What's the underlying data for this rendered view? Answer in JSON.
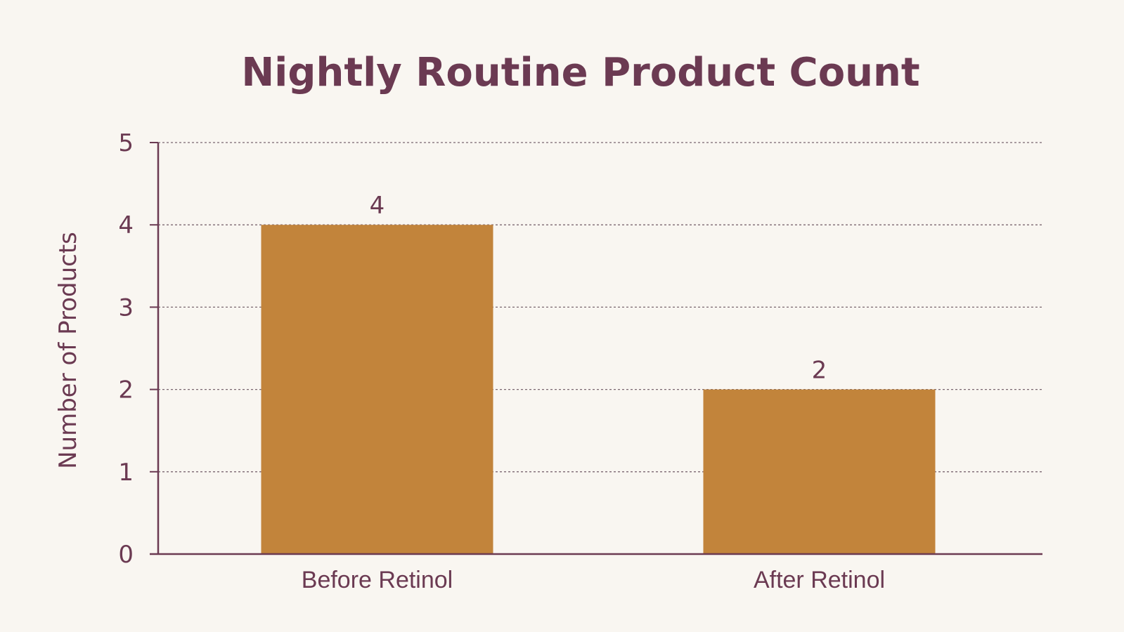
{
  "chart_data": {
    "type": "bar",
    "title": "Nightly Routine Product Count",
    "xlabel": "",
    "ylabel": "Number of Products",
    "categories": [
      "Before Retinol",
      "After Retinol"
    ],
    "values": [
      4,
      2
    ],
    "data_labels": [
      "4",
      "2"
    ],
    "ylim": [
      0,
      5
    ],
    "yticks": [
      0,
      1,
      2,
      3,
      4,
      5
    ],
    "ytick_labels": [
      "0",
      "1",
      "2",
      "3",
      "4",
      "5"
    ],
    "grid": "horizontal dotted",
    "legend": "none"
  },
  "colors": {
    "background": "#f9f6f1",
    "bar": "#c2843b",
    "text": "#6b3a52",
    "axis": "#6b3a52",
    "grid": "#7a6670"
  }
}
